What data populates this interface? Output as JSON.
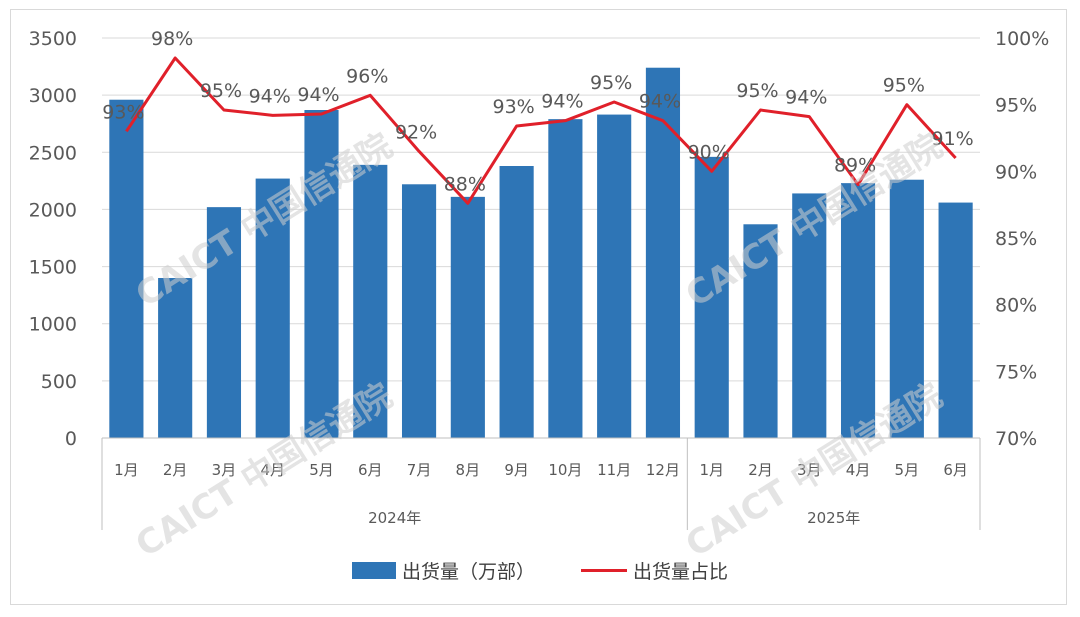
{
  "chart_data": {
    "type": "bar",
    "categories": [
      "1月",
      "2月",
      "3月",
      "4月",
      "5月",
      "6月",
      "7月",
      "8月",
      "9月",
      "10月",
      "11月",
      "12月",
      "1月",
      "2月",
      "3月",
      "4月",
      "5月",
      "6月"
    ],
    "groups": [
      {
        "label": "2024年",
        "count": 12
      },
      {
        "label": "2025年",
        "count": 6
      }
    ],
    "series": [
      {
        "name": "出货量（万部）",
        "type": "bar",
        "axis": "left",
        "color": "#2e75b6",
        "values": [
          2960,
          1400,
          2020,
          2270,
          2870,
          2390,
          2220,
          2110,
          2380,
          2790,
          2830,
          3240,
          2460,
          1870,
          2140,
          2230,
          2260,
          2060
        ]
      },
      {
        "name": "出货量占比",
        "type": "line",
        "axis": "right",
        "color": "#e0202a",
        "values": [
          93,
          98.5,
          94.6,
          94.2,
          94.3,
          95.7,
          91.5,
          87.6,
          93.4,
          93.8,
          95.2,
          93.8,
          90,
          94.6,
          94.1,
          89,
          95,
          91
        ],
        "labels": [
          "93%",
          "98%",
          "95%",
          "94%",
          "94%",
          "96%",
          "92%",
          "88%",
          "93%",
          "94%",
          "95%",
          "94%",
          "90%",
          "95%",
          "94%",
          "89%",
          "95%",
          "91%"
        ]
      }
    ],
    "y_left": {
      "min": 0,
      "max": 3500,
      "ticks": [
        "0",
        "500",
        "1000",
        "1500",
        "2000",
        "2500",
        "3000",
        "3500"
      ]
    },
    "y_right": {
      "min": 70,
      "max": 100,
      "ticks": [
        "70%",
        "75%",
        "80%",
        "85%",
        "90%",
        "95%",
        "100%"
      ]
    },
    "grid": true,
    "legend_position": "bottom"
  },
  "legend": {
    "bar_label": "出货量（万部）",
    "line_label": "出货量占比"
  },
  "watermark": {
    "text": "CAICT 中国信通院"
  }
}
